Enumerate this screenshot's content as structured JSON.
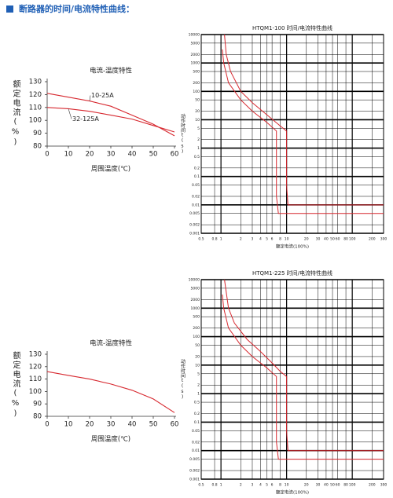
{
  "header": {
    "title": "断路器的时间/电流特性曲线："
  },
  "chart_data": [
    {
      "type": "line",
      "title": "电流-温度特性",
      "x_label": "周围温度(℃)",
      "y_label": "额定电流(%)",
      "xlim": [
        0,
        60
      ],
      "ylim": [
        80,
        130
      ],
      "xticks": [
        0,
        10,
        20,
        30,
        40,
        50,
        60
      ],
      "yticks": [
        80,
        90,
        100,
        110,
        120,
        130
      ],
      "grid": false,
      "series": [
        {
          "name": "10-25A",
          "color": "#d7282f",
          "x": [
            0,
            10,
            20,
            30,
            40,
            50,
            60
          ],
          "values": [
            121,
            118,
            115,
            111,
            104,
            97,
            88
          ]
        },
        {
          "name": "32-125A",
          "color": "#d7282f",
          "x": [
            0,
            10,
            20,
            30,
            40,
            50,
            60
          ],
          "values": [
            110,
            109,
            107,
            104,
            101,
            96,
            91
          ]
        }
      ]
    },
    {
      "type": "line",
      "title": "HTQM1-100 时间/电流特性曲线",
      "x_label": "额定电流(100%)",
      "y_label": "动作时间t(s)",
      "xscale": "log",
      "yscale": "log",
      "grid": true,
      "xlim": [
        0.5,
        300
      ],
      "ylim": [
        0.001,
        10000
      ],
      "xticks": [
        0.5,
        0.8,
        1,
        2,
        3,
        4,
        5,
        6,
        8,
        10,
        20,
        30,
        40,
        50,
        60,
        80,
        100,
        200,
        300
      ],
      "yticks": [
        0.001,
        0.002,
        0.005,
        0.01,
        0.02,
        0.05,
        0.1,
        0.2,
        0.5,
        1,
        2,
        5,
        10,
        20,
        50,
        100,
        200,
        500,
        1000,
        2000,
        5000,
        10000
      ],
      "series": [
        {
          "color": "#d7282f",
          "x": [
            1.13,
            1.2,
            1.4,
            2,
            3,
            5,
            8,
            10,
            10,
            10.5,
            300
          ],
          "values": [
            10000,
            2000,
            500,
            100,
            40,
            15,
            6,
            4,
            0.05,
            0.01,
            0.01
          ]
        },
        {
          "color": "#d7282f",
          "x": [
            1.05,
            1.1,
            1.3,
            2,
            3,
            5,
            7,
            7,
            7.5,
            300
          ],
          "values": [
            3000,
            1000,
            200,
            50,
            20,
            8,
            4,
            0.02,
            0.005,
            0.005
          ]
        }
      ]
    },
    {
      "type": "line",
      "title": "电流-温度特性",
      "x_label": "周围温度(℃)",
      "y_label": "额定电流(%)",
      "xlim": [
        0,
        60
      ],
      "ylim": [
        80,
        130
      ],
      "xticks": [
        0,
        10,
        20,
        30,
        40,
        50,
        60
      ],
      "yticks": [
        80,
        90,
        100,
        110,
        120,
        130
      ],
      "grid": false,
      "series": [
        {
          "color": "#d7282f",
          "x": [
            0,
            10,
            20,
            30,
            40,
            50,
            60
          ],
          "values": [
            116,
            113,
            110,
            106,
            101,
            94,
            83
          ]
        }
      ]
    },
    {
      "type": "line",
      "title": "HTQM1-225 时间/电流特性曲线",
      "x_label": "额定电流(100%)",
      "y_label": "动作时间t(s)",
      "xscale": "log",
      "yscale": "log",
      "grid": true,
      "xlim": [
        0.5,
        300
      ],
      "ylim": [
        0.001,
        10000
      ],
      "xticks": [
        0.5,
        0.8,
        1,
        2,
        3,
        4,
        5,
        6,
        8,
        10,
        20,
        30,
        40,
        50,
        60,
        80,
        100,
        200,
        300
      ],
      "yticks": [
        0.001,
        0.002,
        0.005,
        0.01,
        0.02,
        0.05,
        0.1,
        0.2,
        0.5,
        1,
        2,
        5,
        10,
        20,
        50,
        100,
        200,
        500,
        1000,
        2000,
        5000,
        10000
      ],
      "series": [
        {
          "color": "#d7282f",
          "x": [
            1.13,
            1.3,
            1.6,
            2.5,
            4,
            6,
            8,
            10,
            10,
            10.5,
            300
          ],
          "values": [
            10000,
            1000,
            300,
            80,
            30,
            12,
            6,
            4,
            0.05,
            0.01,
            0.01
          ]
        },
        {
          "color": "#d7282f",
          "x": [
            1.05,
            1.1,
            1.3,
            2,
            3,
            5,
            7,
            7,
            7.5,
            300
          ],
          "values": [
            3000,
            1000,
            200,
            50,
            20,
            8,
            4,
            0.02,
            0.005,
            0.005
          ]
        }
      ]
    }
  ]
}
